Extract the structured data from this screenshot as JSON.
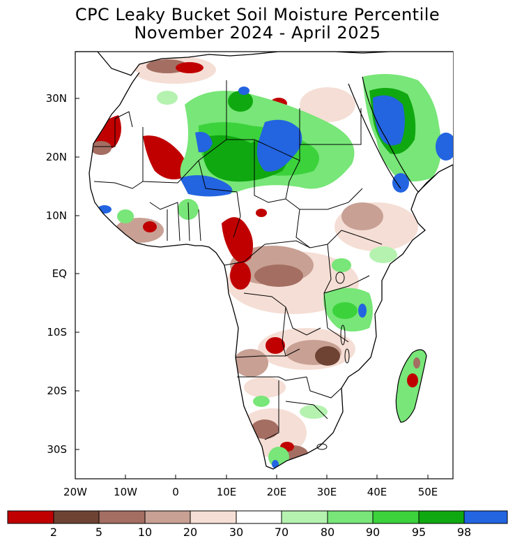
{
  "title_line1": "CPC Leaky Bucket Soil Moisture Percentile",
  "title_line2": "November 2024 - April 2025",
  "lat_labels": [
    "30N",
    "20N",
    "10N",
    "EQ",
    "10S",
    "20S",
    "30S"
  ],
  "lon_labels": [
    "20W",
    "10W",
    "0",
    "10E",
    "20E",
    "30E",
    "40E",
    "50E"
  ],
  "colorbar": {
    "colors": [
      "#c00000",
      "#6e4334",
      "#a46e62",
      "#c8a094",
      "#f5ded5",
      "#ffffff",
      "#b5f2b0",
      "#78e678",
      "#3cd23c",
      "#10a810",
      "#2364e0"
    ],
    "labels": [
      "2",
      "5",
      "10",
      "20",
      "30",
      "70",
      "80",
      "90",
      "95",
      "98"
    ]
  }
}
